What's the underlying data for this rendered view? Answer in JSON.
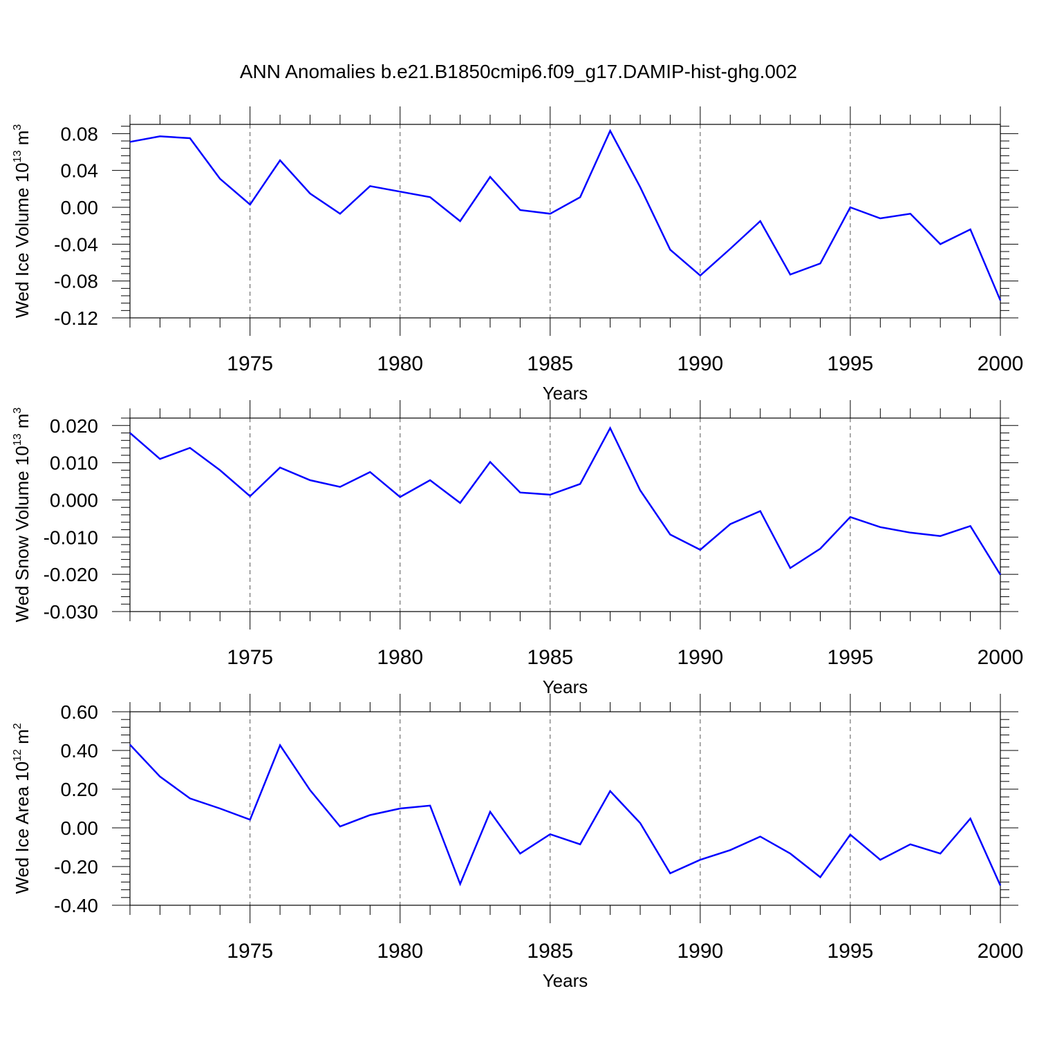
{
  "title": "ANN Anomalies b.e21.B1850cmip6.f09_g17.DAMIP-hist-ghg.002",
  "colors": {
    "series": "#0000ff",
    "axis": "#000000",
    "grid": "#555555"
  },
  "chart_data": [
    {
      "type": "line",
      "title": "",
      "xlabel": "Years",
      "ylabel": "Wed Ice Volume 10",
      "ylabel_sup": "13",
      "ylabel_unit": "m",
      "ylabel_unit_sup": "3",
      "xlim": [
        1971,
        2000
      ],
      "ylim": [
        -0.12,
        0.09
      ],
      "x_ticks": [
        1975,
        1980,
        1985,
        1990,
        1995,
        2000
      ],
      "x_tick_labels": [
        "1975",
        "1980",
        "1985",
        "1990",
        "1995",
        "2000"
      ],
      "y_ticks": [
        0.08,
        0.04,
        0.0,
        -0.04,
        -0.08,
        -0.12
      ],
      "y_tick_labels": [
        "0.08",
        "0.04",
        "0.00",
        "-0.04",
        "-0.08",
        "-0.12"
      ],
      "grid": "vertical dashed at labeled years",
      "x": [
        1971,
        1972,
        1973,
        1974,
        1975,
        1976,
        1977,
        1978,
        1979,
        1980,
        1981,
        1982,
        1983,
        1984,
        1985,
        1986,
        1987,
        1988,
        1989,
        1990,
        1991,
        1992,
        1993,
        1994,
        1995,
        1996,
        1997,
        1998,
        1999,
        2000
      ],
      "values": [
        0.071,
        0.077,
        0.075,
        0.031,
        0.003,
        0.051,
        0.015,
        -0.007,
        0.023,
        0.017,
        0.011,
        -0.015,
        0.033,
        -0.003,
        -0.007,
        0.011,
        0.083,
        0.022,
        -0.046,
        -0.074,
        -0.045,
        -0.015,
        -0.073,
        -0.061,
        0.0,
        -0.012,
        -0.007,
        -0.04,
        -0.024,
        -0.101
      ]
    },
    {
      "type": "line",
      "title": "",
      "xlabel": "Years",
      "ylabel": "Wed Snow Volume 10",
      "ylabel_sup": "13",
      "ylabel_unit": "m",
      "ylabel_unit_sup": "3",
      "xlim": [
        1971,
        2000
      ],
      "ylim": [
        -0.03,
        0.022
      ],
      "x_ticks": [
        1975,
        1980,
        1985,
        1990,
        1995,
        2000
      ],
      "x_tick_labels": [
        "1975",
        "1980",
        "1985",
        "1990",
        "1995",
        "2000"
      ],
      "y_ticks": [
        0.02,
        0.01,
        0.0,
        -0.01,
        -0.02,
        -0.03
      ],
      "y_tick_labels": [
        "0.020",
        "0.010",
        "0.000",
        "-0.010",
        "-0.020",
        "-0.030"
      ],
      "grid": "vertical dashed at labeled years",
      "x": [
        1971,
        1972,
        1973,
        1974,
        1975,
        1976,
        1977,
        1978,
        1979,
        1980,
        1981,
        1982,
        1983,
        1984,
        1985,
        1986,
        1987,
        1988,
        1989,
        1990,
        1991,
        1992,
        1993,
        1994,
        1995,
        1996,
        1997,
        1998,
        1999,
        2000
      ],
      "values": [
        0.018,
        0.011,
        0.014,
        0.008,
        0.001,
        0.0087,
        0.0053,
        0.0035,
        0.0075,
        0.0008,
        0.0053,
        -0.0008,
        0.0102,
        0.002,
        0.0014,
        0.0043,
        0.0193,
        0.0026,
        -0.0093,
        -0.0134,
        -0.0065,
        -0.003,
        -0.0183,
        -0.0131,
        -0.0046,
        -0.0073,
        -0.0088,
        -0.0097,
        -0.007,
        -0.0201
      ]
    },
    {
      "type": "line",
      "title": "",
      "xlabel": "Years",
      "ylabel": "Wed Ice Area 10",
      "ylabel_sup": "12",
      "ylabel_unit": "m",
      "ylabel_unit_sup": "2",
      "xlim": [
        1971,
        2000
      ],
      "ylim": [
        -0.4,
        0.6
      ],
      "x_ticks": [
        1975,
        1980,
        1985,
        1990,
        1995,
        2000
      ],
      "x_tick_labels": [
        "1975",
        "1980",
        "1985",
        "1990",
        "1995",
        "2000"
      ],
      "y_ticks": [
        0.6,
        0.4,
        0.2,
        0.0,
        -0.2,
        -0.4
      ],
      "y_tick_labels": [
        "0.60",
        "0.40",
        "0.20",
        "0.00",
        "-0.20",
        "-0.40"
      ],
      "grid": "vertical dashed at labeled years",
      "x": [
        1971,
        1972,
        1973,
        1974,
        1975,
        1976,
        1977,
        1978,
        1979,
        1980,
        1981,
        1982,
        1983,
        1984,
        1985,
        1986,
        1987,
        1988,
        1989,
        1990,
        1991,
        1992,
        1993,
        1994,
        1995,
        1996,
        1997,
        1998,
        1999,
        2000
      ],
      "values": [
        0.43,
        0.265,
        0.152,
        0.1,
        0.042,
        0.427,
        0.195,
        0.007,
        0.066,
        0.1,
        0.115,
        -0.29,
        0.083,
        -0.133,
        -0.033,
        -0.085,
        0.19,
        0.025,
        -0.235,
        -0.165,
        -0.115,
        -0.045,
        -0.133,
        -0.255,
        -0.035,
        -0.165,
        -0.085,
        -0.133,
        0.048,
        -0.298
      ]
    }
  ]
}
